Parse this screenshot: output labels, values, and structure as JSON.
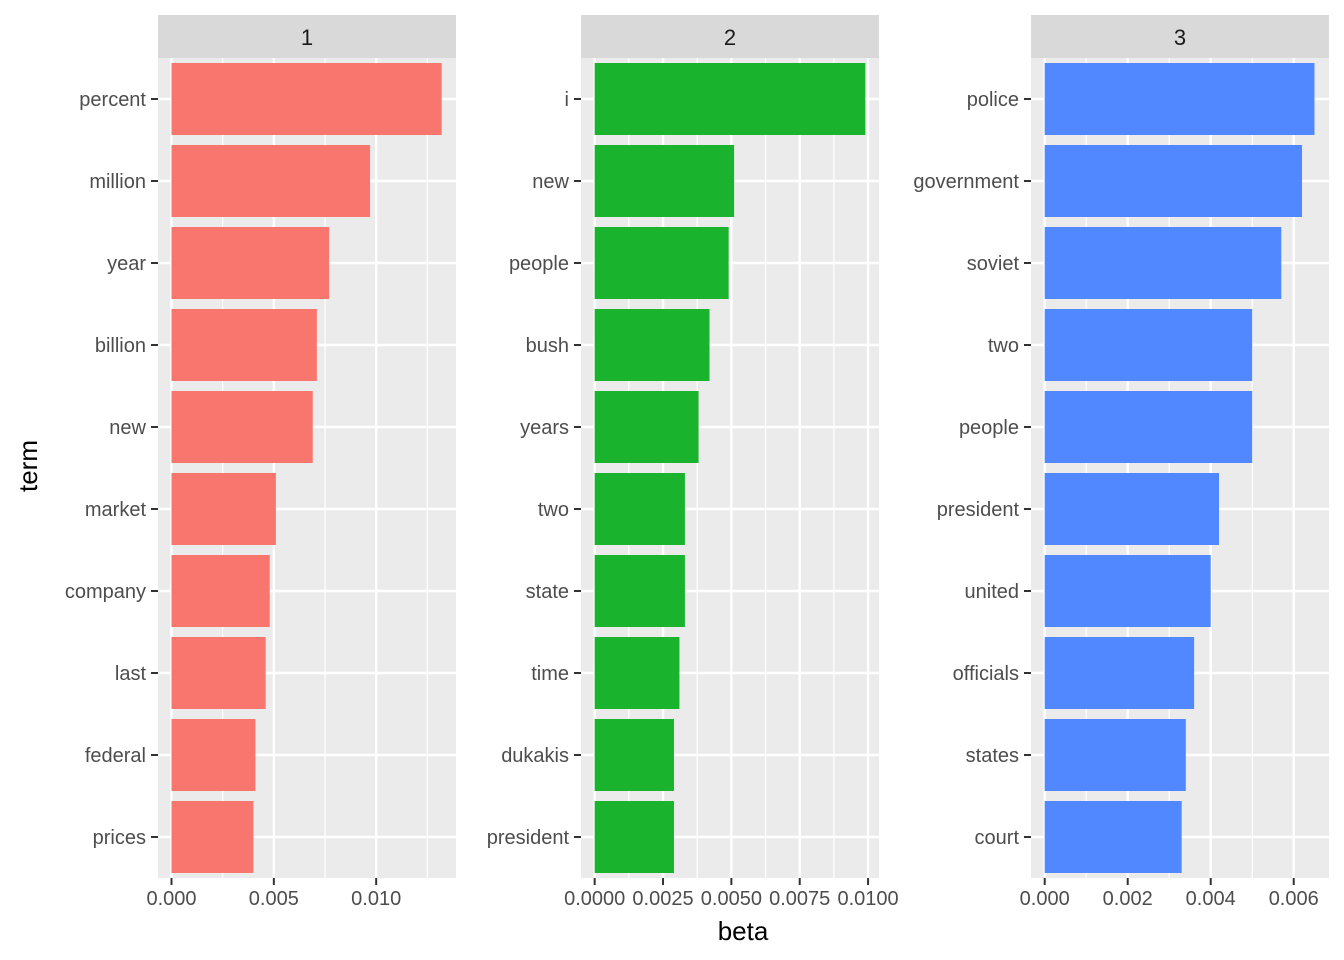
{
  "chart_data": {
    "type": "bar",
    "orientation": "horizontal",
    "xlabel": "beta",
    "ylabel": "term",
    "grid": true,
    "legend": "none",
    "facets": [
      {
        "strip_label": "1",
        "color": "#F8766D",
        "xlim": [
          -0.00066,
          0.0139
        ],
        "ticks": [
          "0.000",
          "0.005",
          "0.010"
        ],
        "tick_values": [
          0,
          0.005,
          0.01
        ],
        "categories": [
          "percent",
          "million",
          "year",
          "billion",
          "new",
          "market",
          "company",
          "last",
          "federal",
          "prices"
        ],
        "values": [
          0.0132,
          0.0097,
          0.0077,
          0.0071,
          0.0069,
          0.0051,
          0.0048,
          0.0046,
          0.0041,
          0.004
        ]
      },
      {
        "strip_label": "2",
        "color": "#1AB32E",
        "xlim": [
          -0.0005,
          0.0104
        ],
        "ticks": [
          "0.0000",
          "0.0025",
          "0.0050",
          "0.0075",
          "0.0100"
        ],
        "tick_values": [
          0,
          0.0025,
          0.005,
          0.0075,
          0.01
        ],
        "categories": [
          "i",
          "new",
          "people",
          "bush",
          "years",
          "two",
          "state",
          "time",
          "dukakis",
          "president"
        ],
        "values": [
          0.0099,
          0.0051,
          0.0049,
          0.0042,
          0.0038,
          0.0033,
          0.0033,
          0.0031,
          0.0029,
          0.0029
        ]
      },
      {
        "strip_label": "3",
        "color": "#5288FF",
        "xlim": [
          -0.00033,
          0.00685
        ],
        "ticks": [
          "0.000",
          "0.002",
          "0.004",
          "0.006"
        ],
        "tick_values": [
          0,
          0.002,
          0.004,
          0.006
        ],
        "categories": [
          "police",
          "government",
          "soviet",
          "two",
          "people",
          "president",
          "united",
          "officials",
          "states",
          "court"
        ],
        "values": [
          0.0065,
          0.0062,
          0.0057,
          0.005,
          0.005,
          0.0042,
          0.004,
          0.0036,
          0.0034,
          0.0033
        ]
      }
    ]
  }
}
